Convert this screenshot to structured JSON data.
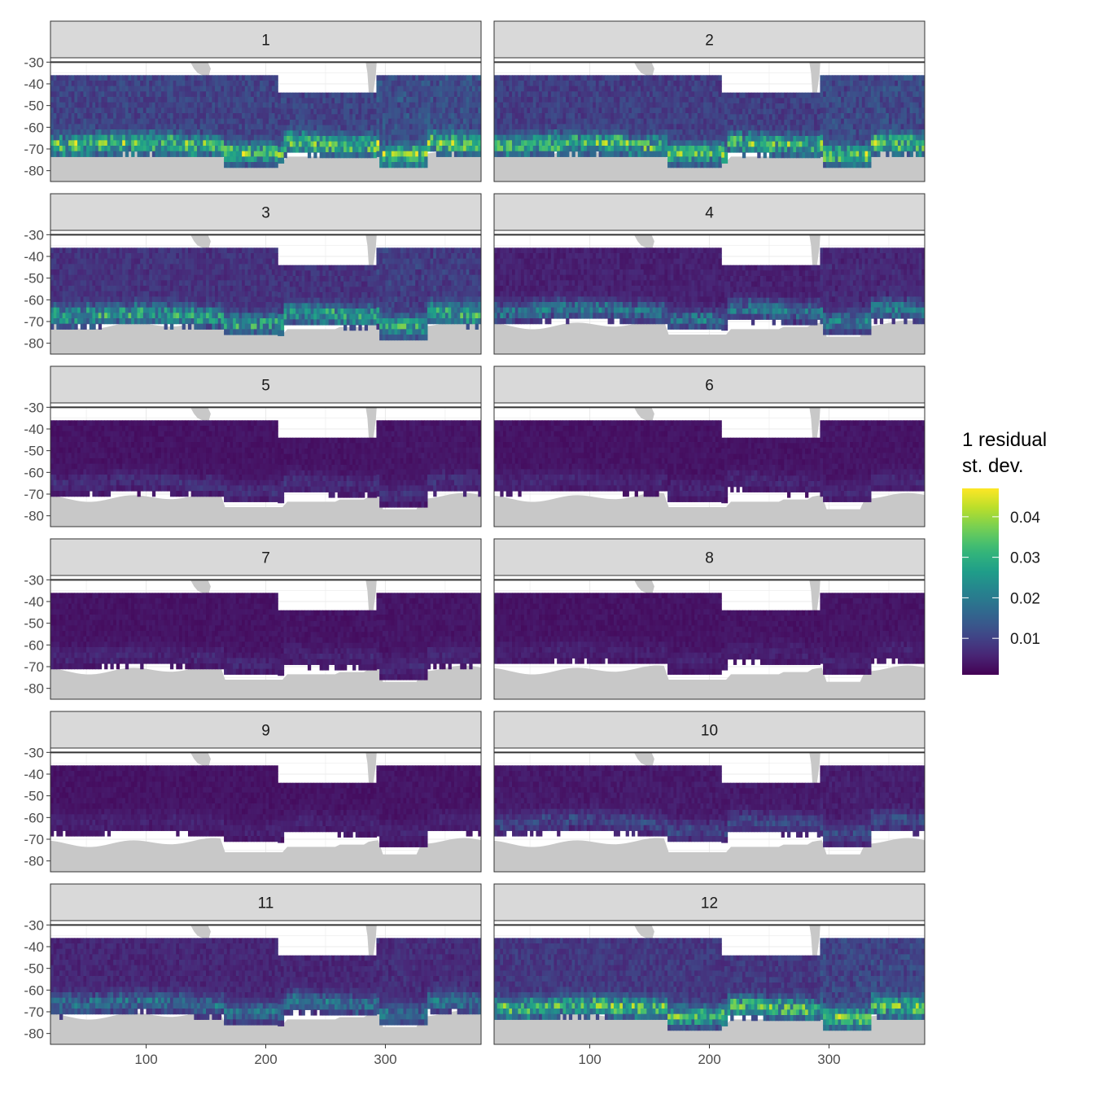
{
  "chart_data": {
    "type": "heatmap",
    "title": "",
    "xlabel": "",
    "ylabel": "",
    "xlim": [
      20,
      380
    ],
    "ylim": [
      -85,
      -28
    ],
    "x_ticks": [
      100,
      200,
      300
    ],
    "x_tick_labels": [
      "100",
      "200",
      "300"
    ],
    "y_ticks": [
      -30,
      -40,
      -50,
      -60,
      -70,
      -80
    ],
    "y_tick_labels": [
      "-30",
      "-40",
      "-50",
      "-60",
      "-70",
      "-80"
    ],
    "facets": [
      "1",
      "2",
      "3",
      "4",
      "5",
      "6",
      "7",
      "8",
      "9",
      "10",
      "11",
      "12"
    ],
    "facet_layout": {
      "ncol": 2,
      "nrow": 6
    },
    "data_extent": {
      "lon": [
        20,
        380
      ],
      "lat_north_west": -36,
      "lat_north_east": -44,
      "lon_east_segment": [
        210,
        292
      ]
    },
    "southern_boundary_lat_by_month": [
      -71,
      -71,
      -70,
      -68,
      -68,
      -67,
      -68,
      -66,
      -65,
      -65,
      -69,
      -71
    ],
    "mean_residual_sd_by_month": [
      0.012,
      0.011,
      0.009,
      0.006,
      0.004,
      0.004,
      0.004,
      0.004,
      0.004,
      0.005,
      0.007,
      0.01
    ],
    "max_residual_sd_by_month": [
      0.047,
      0.046,
      0.038,
      0.027,
      0.01,
      0.008,
      0.008,
      0.007,
      0.007,
      0.015,
      0.025,
      0.045
    ],
    "colorbar": {
      "title_line1": "1 residual",
      "title_line2": "st. dev.",
      "range": [
        0.001,
        0.047
      ],
      "ticks": [
        0.01,
        0.02,
        0.03,
        0.04
      ],
      "tick_labels": [
        "0.01",
        "0.02",
        "0.03",
        "0.04"
      ],
      "palette": "viridis"
    },
    "colors": {
      "land": "#c8c8c8",
      "strip": "#d9d9d9",
      "panel_border": "#333333",
      "grid": "#ebebeb",
      "no_data": "#ffffff"
    }
  }
}
